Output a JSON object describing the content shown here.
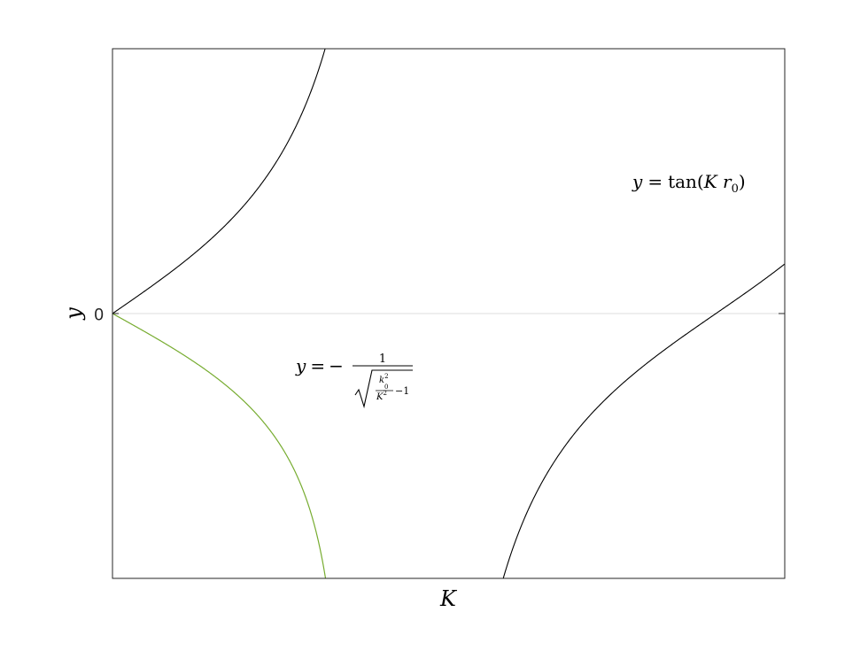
{
  "chart_data": {
    "type": "line",
    "title": "",
    "xlabel": "K",
    "ylabel": "y",
    "x_tick_labels": [],
    "y_tick_labels": [
      "0"
    ],
    "xlim": [
      0,
      3.5
    ],
    "ylim": [
      -2,
      2
    ],
    "k0": 1.24,
    "zero_line": {
      "y": 0,
      "color": "#dcdcdc"
    },
    "series": [
      {
        "name": "y = tan(K r0)",
        "function": "tan",
        "color": "#000000",
        "annotation_parts": {
          "lhs": "y",
          "eq": "=",
          "fn": "tan",
          "arg": "K r",
          "sub": "0"
        }
      },
      {
        "name": "y = -1/sqrt(k0^2/K^2 - 1)",
        "function": "neg_inv_sqrt",
        "color": "#77ac30",
        "annotation_parts": {
          "lhs": "y",
          "eq": "=",
          "minus": "−",
          "num": "1",
          "k": "k",
          "k_sup": "2",
          "k_sub": "0",
          "K": "K",
          "K_sup": "2",
          "minus_one": "−1"
        }
      }
    ]
  }
}
